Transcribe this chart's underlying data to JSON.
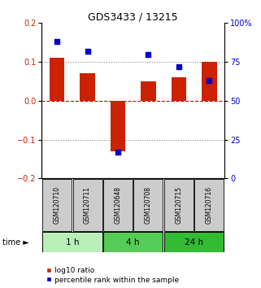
{
  "title": "GDS3433 / 13215",
  "samples": [
    "GSM120710",
    "GSM120711",
    "GSM120648",
    "GSM120708",
    "GSM120715",
    "GSM120716"
  ],
  "log10_ratio": [
    0.11,
    0.07,
    -0.13,
    0.05,
    0.06,
    0.1
  ],
  "percentile_rank": [
    88,
    82,
    17,
    80,
    72,
    63
  ],
  "groups": [
    {
      "label": "1 h",
      "indices": [
        0,
        1
      ],
      "color": "#b8f0b8"
    },
    {
      "label": "4 h",
      "indices": [
        2,
        3
      ],
      "color": "#55cc55"
    },
    {
      "label": "24 h",
      "indices": [
        4,
        5
      ],
      "color": "#33bb33"
    }
  ],
  "bar_color": "#cc2200",
  "square_color": "#0000cc",
  "ylim_left": [
    -0.2,
    0.2
  ],
  "ylim_right": [
    0,
    100
  ],
  "yticks_left": [
    -0.2,
    -0.1,
    0.0,
    0.1,
    0.2
  ],
  "yticks_right": [
    0,
    25,
    50,
    75,
    100
  ],
  "ytick_labels_right": [
    "0",
    "25",
    "50",
    "75",
    "100%"
  ],
  "hlines": [
    -0.1,
    0.0,
    0.1
  ],
  "bg_color": "#ffffff",
  "label_box_color": "#cccccc",
  "title_color": "#000000",
  "bar_width": 0.5,
  "sq_size": 25
}
